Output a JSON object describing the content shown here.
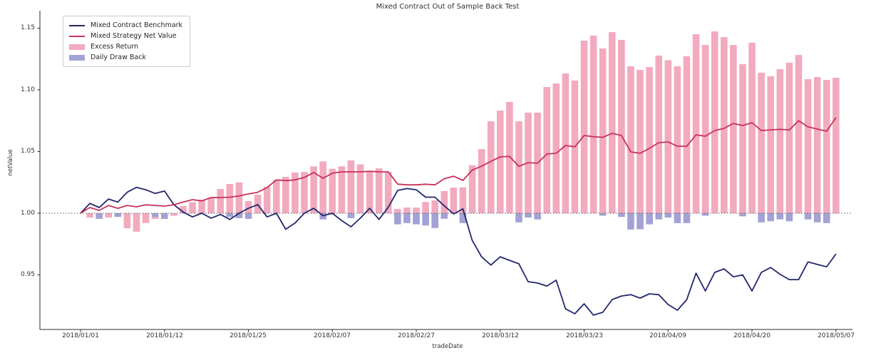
{
  "title": "Mixed Contract Out of Sample Back Test",
  "legend": {
    "items": [
      {
        "label": "Mixed Contract Benchmark",
        "swatch": "line",
        "color": "#23276d"
      },
      {
        "label": "Mixed Strategy Net Value",
        "swatch": "line",
        "color": "#c8325a"
      },
      {
        "label": "Excess Return",
        "swatch": "patch",
        "color": "#f2aabf"
      },
      {
        "label": "Daily Draw Back",
        "swatch": "patch",
        "color": "#a2a2d5"
      }
    ]
  },
  "axes": {
    "y_label": "netValue",
    "x_label": "tradeDate",
    "y_tick_labels": [
      "1.15",
      "1.10",
      "1.05",
      "1.00",
      "0.95"
    ],
    "x_tick_labels": [
      "2018/01/01",
      "2018/01/12",
      "2018/01/25",
      "2018/02/07",
      "2018/02/27",
      "2018/03/12",
      "2018/03/23",
      "2018/04/09",
      "2018/04/20",
      "2018/05/07"
    ]
  },
  "colors": {
    "benchmark_line": "#23276d",
    "strategy_line": "#c8325a",
    "excess_bar": "#f2aabf",
    "drawback_bar": "#a2a2d5",
    "baseline_dotted": "#555555",
    "spine": "#2b2b2b",
    "text": "#262626",
    "background": "#ffffff"
  },
  "chart_data": {
    "type": "mixed",
    "subtype": "two line series over bar series, daily, baseline at 1.00 (dotted)",
    "title": "Mixed Contract Out of Sample Back Test",
    "xlabel": "tradeDate",
    "ylabel": "netValue",
    "ylim": [
      0.906,
      1.164
    ],
    "y_ticks": [
      0.95,
      1.0,
      1.05,
      1.1,
      1.15
    ],
    "x_tick_indices": [
      0,
      9,
      18,
      27,
      36,
      45,
      54,
      63,
      72,
      81
    ],
    "x_tick_labels": [
      "2018/01/01",
      "2018/01/12",
      "2018/01/25",
      "2018/02/07",
      "2018/02/27",
      "2018/03/12",
      "2018/03/23",
      "2018/04/09",
      "2018/04/20",
      "2018/05/07"
    ],
    "baseline": 1.0,
    "grid": false,
    "legend_position": "upper left",
    "categories": [
      "2018/01/01",
      "2018/01/02",
      "2018/01/03",
      "2018/01/04",
      "2018/01/05",
      "2018/01/08",
      "2018/01/09",
      "2018/01/10",
      "2018/01/11",
      "2018/01/12",
      "2018/01/15",
      "2018/01/16",
      "2018/01/17",
      "2018/01/18",
      "2018/01/19",
      "2018/01/22",
      "2018/01/23",
      "2018/01/24",
      "2018/01/25",
      "2018/01/26",
      "2018/01/29",
      "2018/01/30",
      "2018/01/31",
      "2018/02/01",
      "2018/02/02",
      "2018/02/05",
      "2018/02/06",
      "2018/02/07",
      "2018/02/08",
      "2018/02/09",
      "2018/02/12",
      "2018/02/13",
      "2018/02/14",
      "2018/02/22",
      "2018/02/23",
      "2018/02/26",
      "2018/02/27",
      "2018/02/28",
      "2018/03/01",
      "2018/03/02",
      "2018/03/05",
      "2018/03/06",
      "2018/03/07",
      "2018/03/08",
      "2018/03/09",
      "2018/03/12",
      "2018/03/13",
      "2018/03/14",
      "2018/03/15",
      "2018/03/16",
      "2018/03/19",
      "2018/03/20",
      "2018/03/21",
      "2018/03/22",
      "2018/03/23",
      "2018/03/26",
      "2018/03/27",
      "2018/03/28",
      "2018/03/29",
      "2018/03/30",
      "2018/04/02",
      "2018/04/03",
      "2018/04/04",
      "2018/04/09",
      "2018/04/10",
      "2018/04/11",
      "2018/04/12",
      "2018/04/13",
      "2018/04/16",
      "2018/04/17",
      "2018/04/18",
      "2018/04/19",
      "2018/04/20",
      "2018/04/23",
      "2018/04/24",
      "2018/04/25",
      "2018/04/26",
      "2018/04/27",
      "2018/05/02",
      "2018/05/03",
      "2018/05/04",
      "2018/05/07"
    ],
    "series": [
      {
        "name": "Mixed Contract Benchmark",
        "type": "line",
        "color": "#23276d",
        "values": [
          1.0,
          1.008,
          1.0046,
          1.0115,
          1.009,
          1.017,
          1.021,
          1.019,
          1.016,
          1.018,
          1.007,
          1.001,
          0.997,
          1.0,
          0.996,
          0.999,
          0.995,
          1.0,
          1.004,
          1.007,
          0.997,
          1.0,
          0.987,
          0.992,
          1.0,
          1.004,
          0.998,
          1.0,
          0.994,
          0.989,
          0.996,
          1.004,
          0.995,
          1.005,
          1.0185,
          1.02,
          1.019,
          1.013,
          1.013,
          1.006,
          0.9994,
          1.0035,
          0.978,
          0.9647,
          0.958,
          0.9647,
          0.9618,
          0.959,
          0.9445,
          0.9434,
          0.941,
          0.9457,
          0.9225,
          0.9185,
          0.9266,
          0.9174,
          0.9197,
          0.93,
          0.9329,
          0.934,
          0.9312,
          0.9347,
          0.934,
          0.926,
          0.9214,
          0.93,
          0.9514,
          0.937,
          0.952,
          0.9549,
          0.9485,
          0.95,
          0.937,
          0.952,
          0.956,
          0.9505,
          0.9462,
          0.9462,
          0.9605,
          0.9585,
          0.9566,
          0.967
        ]
      },
      {
        "name": "Mixed Strategy Net Value",
        "type": "line",
        "color": "#c8325a",
        "values": [
          1.0,
          1.0046,
          1.0023,
          1.0063,
          1.004,
          1.0063,
          1.0052,
          1.0069,
          1.0063,
          1.0058,
          1.0069,
          1.009,
          1.011,
          1.01,
          1.0127,
          1.0127,
          1.013,
          1.014,
          1.0156,
          1.017,
          1.0208,
          1.027,
          1.0265,
          1.027,
          1.029,
          1.033,
          1.0283,
          1.0324,
          1.0335,
          1.0335,
          1.0335,
          1.034,
          1.0335,
          1.0335,
          1.0236,
          1.023,
          1.023,
          1.0235,
          1.023,
          1.028,
          1.03,
          1.0266,
          1.035,
          1.0381,
          1.042,
          1.0457,
          1.046,
          1.038,
          1.041,
          1.0405,
          1.048,
          1.0486,
          1.0549,
          1.0538,
          1.063,
          1.062,
          1.0615,
          1.0648,
          1.063,
          1.0497,
          1.0486,
          1.0526,
          1.0572,
          1.0578,
          1.0543,
          1.0543,
          1.0635,
          1.0624,
          1.067,
          1.0688,
          1.0728,
          1.0711,
          1.0734,
          1.067,
          1.0676,
          1.068,
          1.0676,
          1.075,
          1.07,
          1.0682,
          1.0665,
          1.0775
        ]
      },
      {
        "name": "Excess Return",
        "type": "bar",
        "color": "#f2aabf",
        "note": "bar drawn from baseline 1.0; value is signed offset from baseline",
        "values": [
          0,
          -0.0035,
          -0.0046,
          -0.0035,
          -0.002,
          -0.0122,
          -0.015,
          -0.008,
          -0.0046,
          -0.0046,
          -0.002,
          0.006,
          0.009,
          0.011,
          0.0127,
          0.0197,
          0.0237,
          0.025,
          0.0098,
          0.015,
          0.0214,
          0.0272,
          0.0295,
          0.033,
          0.0335,
          0.038,
          0.042,
          0.036,
          0.038,
          0.0428,
          0.0396,
          0.0335,
          0.0364,
          0.0335,
          0.0035,
          0.0046,
          0.0046,
          0.0092,
          0.0104,
          0.018,
          0.0208,
          0.021,
          0.039,
          0.052,
          0.0745,
          0.0832,
          0.0902,
          0.0745,
          0.0815,
          0.0815,
          0.1023,
          0.1052,
          0.1133,
          0.1075,
          0.1399,
          0.144,
          0.1335,
          0.1468,
          0.1405,
          0.1191,
          0.1162,
          0.1185,
          0.1278,
          0.124,
          0.1191,
          0.1272,
          0.1451,
          0.1364,
          0.1474,
          0.1428,
          0.1364,
          0.1208,
          0.1382,
          0.1139,
          0.111,
          0.1168,
          0.122,
          0.1283,
          0.1087,
          0.1104,
          0.1081,
          0.1098
        ]
      },
      {
        "name": "Daily Draw Back",
        "type": "bar",
        "color": "#a2a2d5",
        "note": "bar drawn downward from baseline 1.0; value is signed offset from baseline",
        "values": [
          0,
          0,
          -0.0046,
          0,
          -0.003,
          0,
          0,
          0,
          -0.003,
          -0.0046,
          0,
          0,
          0,
          0,
          0,
          0,
          -0.003,
          -0.004,
          -0.0046,
          0,
          0,
          0,
          0,
          0,
          0,
          0,
          -0.005,
          0,
          0,
          -0.004,
          0,
          0,
          0,
          0,
          -0.009,
          -0.008,
          -0.009,
          -0.01,
          -0.012,
          -0.0045,
          0,
          -0.008,
          0,
          0,
          0,
          0,
          0,
          -0.0074,
          -0.0035,
          -0.005,
          0,
          0,
          0,
          0,
          0,
          0,
          -0.002,
          0,
          -0.003,
          -0.0132,
          -0.013,
          -0.009,
          -0.005,
          -0.0035,
          -0.008,
          -0.008,
          0,
          -0.002,
          0,
          0,
          0,
          -0.0025,
          0,
          -0.0074,
          -0.0065,
          -0.005,
          -0.0065,
          0,
          -0.005,
          -0.0074,
          -0.008,
          0
        ]
      }
    ]
  }
}
